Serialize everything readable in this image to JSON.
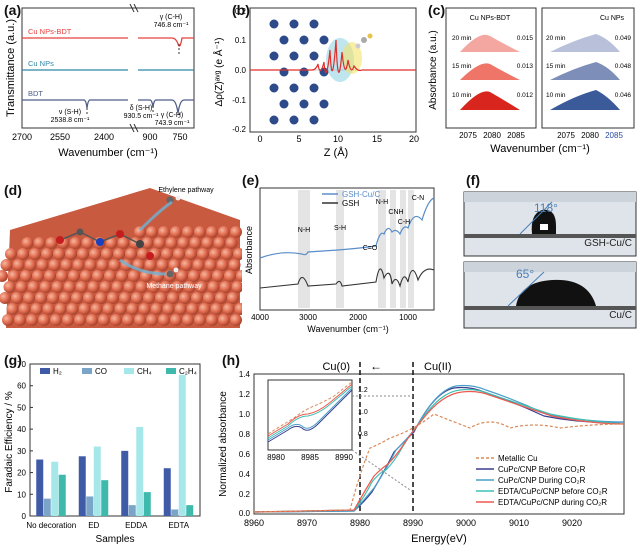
{
  "panel_labels": {
    "a": "(a)",
    "b": "(b)",
    "c": "(c)",
    "d": "(d)",
    "e": "(e)",
    "f": "(f)",
    "g": "(g)",
    "h": "(h)"
  },
  "panel_a": {
    "ylabel": "Transmittance (a.u.)",
    "xlabel": "Wavenumber (cm⁻¹)",
    "xticks": [
      "2700",
      "2550",
      "2400",
      "900",
      "750"
    ],
    "series_names": [
      "Cu NPs-BDT",
      "Cu NPs",
      "BDT"
    ],
    "colors": [
      "#e8413c",
      "#2e86a7",
      "#4e5d8a"
    ],
    "annotations": {
      "gCH_top": "γ (C-H)",
      "gCH_top_val": "746.8 cm⁻¹",
      "vSH": "ν (S-H)",
      "vSH_val": "2538.8 cm⁻¹",
      "dSH": "δ (S-H)",
      "dSH_val": "930.5 cm⁻¹",
      "gCH_bot": "γ (C-H)",
      "gCH_bot_val": "743.9 cm⁻¹"
    }
  },
  "panel_b": {
    "ylabel": "Δρ(Z)ᵃᵛᵍ (e Å⁻¹)",
    "xlabel": "Z (Å)",
    "xticks": [
      "0",
      "5",
      "10",
      "15",
      "20"
    ],
    "yticks": [
      "0.2",
      "0.1",
      "0.0",
      "-0.1",
      "-0.2"
    ]
  },
  "panel_c": {
    "ylabel": "Absorbance (a.u.)",
    "xlabel": "Wavenumber (cm⁻¹)",
    "left_title": "Cu NPs-BDT",
    "right_title": "Cu NPs",
    "left_xticks": [
      "2075",
      "2080",
      "2085"
    ],
    "right_xticks": [
      "2075",
      "2080",
      "2085"
    ],
    "rows": [
      {
        "time": "20 min",
        "left_val": "0.015",
        "right_val": "0.049"
      },
      {
        "time": "15 min",
        "left_val": "0.013",
        "right_val": "0.048"
      },
      {
        "time": "10 min",
        "left_val": "0.012",
        "right_val": "0.046"
      }
    ],
    "left_colors": [
      "#f4a7a0",
      "#ee7568",
      "#d8251d"
    ],
    "right_colors": [
      "#b8c1d9",
      "#7d8fb8",
      "#3b5a9a"
    ]
  },
  "panel_d": {
    "ethylene": "Ethylene pathway",
    "methane": "Methane pathway"
  },
  "panel_e": {
    "ylabel": "Absorbance",
    "xlabel": "Wavenumber (cm⁻¹)",
    "xticks": [
      "4000",
      "3000",
      "2000",
      "1000"
    ],
    "legend": [
      "GSH-Cu/C",
      "GSH"
    ],
    "colors": [
      "#5b8ec9",
      "#333333"
    ],
    "bands": [
      "N-H",
      "S-H",
      "C=O",
      "N-H",
      "CNH",
      "C-H",
      "C-N"
    ]
  },
  "panel_f": {
    "top_angle": "118°",
    "top_label": "GSH-Cu/C",
    "bot_angle": "65°",
    "bot_label": "Cu/C"
  },
  "panel_g": {
    "ylabel": "Faradaic Efficiency / %",
    "xlabel": "Samples",
    "yticks": [
      "0",
      "10",
      "20",
      "30",
      "40",
      "50",
      "60",
      "70"
    ],
    "legend": [
      "H₂",
      "CO",
      "CH₄",
      "C₂H₄"
    ],
    "colors": [
      "#3f5aa6",
      "#7aa5c9",
      "#a6e8ea",
      "#3fb9ac"
    ]
  },
  "panel_h": {
    "ylabel": "Normalized absorbance",
    "xlabel": "Energy(eV)",
    "xticks": [
      "8960",
      "8970",
      "8980",
      "8990",
      "9000",
      "9010",
      "9020"
    ],
    "yticks": [
      "0.0",
      "0.2",
      "0.4",
      "0.6",
      "0.8",
      "1.0",
      "1.2",
      "1.4"
    ],
    "inset_xticks": [
      "8980",
      "8985",
      "8990"
    ],
    "inset_yticks": [
      "0.8",
      "1.0",
      "1.2"
    ],
    "cu0": "Cu(0)",
    "cu2": "Cu(II)",
    "arrow": "←",
    "legend": [
      "Metallic Cu",
      "CuPc/CNP Before CO₂R",
      "CuPc/CNP During CO₂R",
      "EDTA/CuPc/CNP before CO₂R",
      "EDTA/CuPc/CNP during CO₂R"
    ],
    "colors": [
      "#d98a5a",
      "#3a3f8f",
      "#4a9fc9",
      "#3fc0b4",
      "#ee5a4e"
    ]
  },
  "chart_data": [
    {
      "type": "bar",
      "categories": [
        "No decoration",
        "ED",
        "EDDA",
        "EDTA"
      ],
      "series": [
        {
          "name": "H₂",
          "values": [
            26,
            27.5,
            30,
            22
          ]
        },
        {
          "name": "CO",
          "values": [
            8,
            9,
            5,
            3
          ]
        },
        {
          "name": "CH₄",
          "values": [
            25,
            32,
            41,
            65
          ]
        },
        {
          "name": "C₂H₄",
          "values": [
            19,
            16.5,
            11,
            5
          ]
        }
      ],
      "ylabel": "Faradaic Efficiency / %",
      "xlabel": "Samples",
      "ylim": [
        0,
        70
      ]
    }
  ]
}
